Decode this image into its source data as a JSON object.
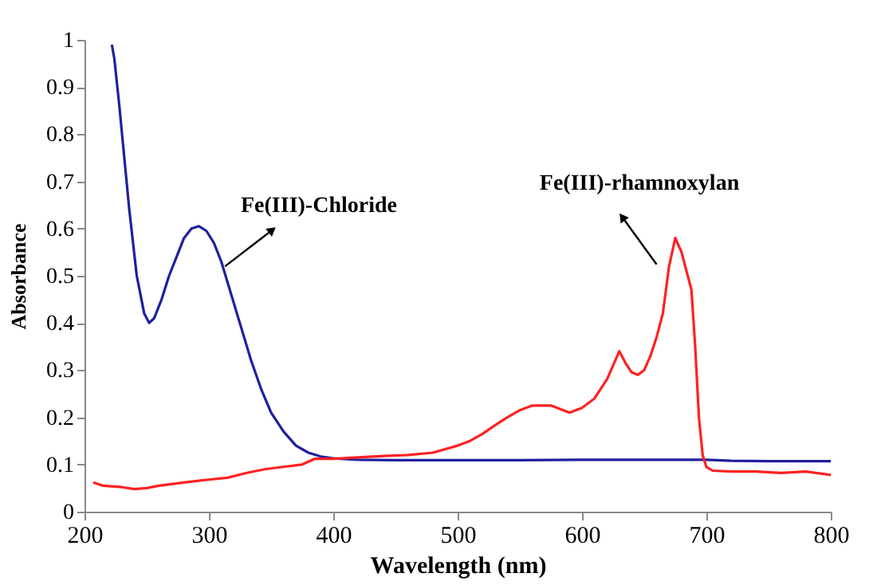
{
  "chart_data": {
    "type": "line",
    "xlabel": "Wavelength (nm)",
    "ylabel": "Absorbance",
    "xlim": [
      200,
      800
    ],
    "ylim": [
      0,
      1
    ],
    "xticks": [
      200,
      300,
      400,
      500,
      600,
      700,
      800
    ],
    "yticks": [
      0,
      0.1,
      0.2,
      0.3,
      0.4,
      0.5,
      0.6,
      0.7,
      0.8,
      0.9,
      1
    ],
    "marker": "none",
    "line_style": "solid",
    "annotations": [
      "Fe(III)-Chloride",
      "Fe(III)-rhamnoxylan"
    ],
    "series": [
      {
        "color": "#1f1fa0",
        "x": [
          222,
          224,
          228,
          232,
          236,
          242,
          248,
          252,
          256,
          262,
          268,
          274,
          280,
          286,
          292,
          298,
          304,
          310,
          318,
          326,
          334,
          342,
          350,
          360,
          370,
          380,
          390,
          400,
          420,
          450,
          500,
          550,
          600,
          650,
          700,
          720,
          750,
          800
        ],
        "values": [
          0.99,
          0.96,
          0.86,
          0.75,
          0.64,
          0.5,
          0.42,
          0.4,
          0.41,
          0.45,
          0.5,
          0.54,
          0.58,
          0.6,
          0.605,
          0.595,
          0.57,
          0.53,
          0.46,
          0.39,
          0.32,
          0.26,
          0.21,
          0.17,
          0.14,
          0.125,
          0.117,
          0.113,
          0.11,
          0.109,
          0.109,
          0.109,
          0.11,
          0.11,
          0.11,
          0.108,
          0.107,
          0.107
        ]
      },
      {
        "color": "#ff2020",
        "x": [
          207,
          215,
          230,
          240,
          250,
          260,
          280,
          300,
          315,
          330,
          345,
          360,
          375,
          385,
          400,
          420,
          440,
          460,
          480,
          500,
          510,
          520,
          530,
          540,
          550,
          560,
          575,
          585,
          590,
          600,
          610,
          620,
          630,
          635,
          640,
          645,
          650,
          655,
          660,
          665,
          670,
          675,
          680,
          685,
          688,
          691,
          694,
          697,
          700,
          705,
          720,
          740,
          760,
          780,
          800
        ],
        "values": [
          0.062,
          0.055,
          0.052,
          0.048,
          0.05,
          0.055,
          0.062,
          0.068,
          0.072,
          0.082,
          0.09,
          0.095,
          0.1,
          0.112,
          0.112,
          0.115,
          0.118,
          0.12,
          0.125,
          0.14,
          0.15,
          0.165,
          0.183,
          0.2,
          0.215,
          0.225,
          0.225,
          0.215,
          0.21,
          0.22,
          0.24,
          0.28,
          0.34,
          0.315,
          0.295,
          0.29,
          0.3,
          0.33,
          0.37,
          0.42,
          0.52,
          0.58,
          0.55,
          0.5,
          0.47,
          0.35,
          0.2,
          0.12,
          0.095,
          0.087,
          0.085,
          0.085,
          0.082,
          0.085,
          0.078
        ]
      }
    ]
  }
}
